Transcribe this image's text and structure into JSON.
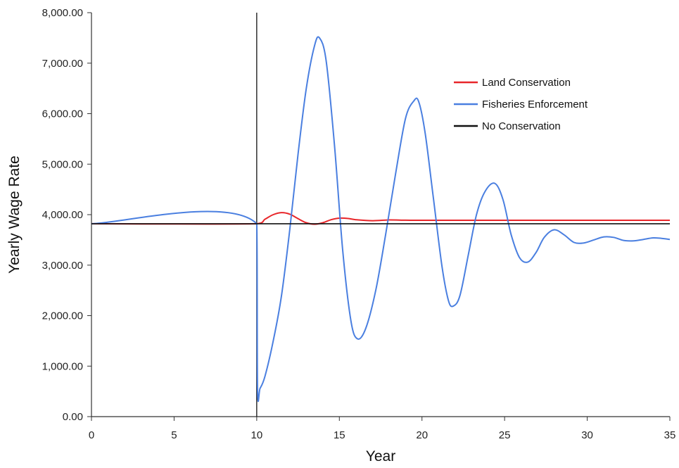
{
  "chart_data": {
    "type": "line",
    "title": "",
    "xlabel": "Year",
    "ylabel": "Yearly Wage Rate",
    "xlim": [
      0,
      35
    ],
    "ylim": [
      0,
      8000
    ],
    "x_ticks": [
      0,
      5,
      10,
      15,
      20,
      25,
      30,
      35
    ],
    "y_ticks": [
      0,
      1000,
      2000,
      3000,
      4000,
      5000,
      6000,
      7000,
      8000
    ],
    "x_tick_labels": [
      "0",
      "5",
      "10",
      "15",
      "20",
      "25",
      "30",
      "35"
    ],
    "y_tick_labels": [
      "0.00",
      "1,000.00",
      "2,000.00",
      "3,000.00",
      "4,000.00",
      "5,000.00",
      "6,000.00",
      "7,000.00",
      "8,000.00"
    ],
    "grid": false,
    "legend_position": "top-right",
    "vertical_marker_x": 10,
    "series": [
      {
        "name": "Land Conservation",
        "color": "#e8262a",
        "x": [
          0,
          10,
          10.5,
          11,
          11.5,
          12,
          12.5,
          13,
          13.5,
          14,
          14.5,
          15,
          15.5,
          16,
          17,
          18,
          19,
          20,
          22,
          25,
          30,
          35
        ],
        "y": [
          3820,
          3820,
          3910,
          4000,
          4040,
          4010,
          3920,
          3840,
          3810,
          3840,
          3900,
          3930,
          3925,
          3900,
          3880,
          3895,
          3890,
          3888,
          3888,
          3888,
          3888,
          3888
        ]
      },
      {
        "name": "Fisheries Enforcement",
        "color": "#4a7fe0",
        "x": [
          0,
          10,
          10.05,
          10.2,
          10.5,
          11,
          11.5,
          12,
          12.5,
          13,
          13.5,
          13.8,
          14.2,
          14.7,
          15.2,
          15.7,
          16.1,
          16.6,
          17.2,
          17.8,
          18.4,
          19,
          19.5,
          19.8,
          20.2,
          20.7,
          21.2,
          21.6,
          21.9,
          22.3,
          22.8,
          23.3,
          23.8,
          24.4,
          24.9,
          25.4,
          25.9,
          26.4,
          26.9,
          27.4,
          28,
          28.6,
          29.2,
          29.8,
          30.4,
          31,
          31.6,
          32.2,
          32.8,
          33.4,
          34,
          34.5,
          35
        ],
        "y": [
          3820,
          3820,
          550,
          560,
          800,
          1500,
          2400,
          3700,
          5200,
          6500,
          7350,
          7500,
          7050,
          5400,
          3300,
          1900,
          1540,
          1750,
          2500,
          3600,
          4800,
          5900,
          6250,
          6240,
          5600,
          4300,
          3000,
          2300,
          2190,
          2400,
          3200,
          4000,
          4450,
          4620,
          4300,
          3600,
          3150,
          3060,
          3250,
          3550,
          3700,
          3600,
          3450,
          3440,
          3500,
          3560,
          3550,
          3490,
          3480,
          3510,
          3540,
          3530,
          3510
        ]
      },
      {
        "name": "No Conservation",
        "color": "#111111",
        "x": [
          0,
          35
        ],
        "y": [
          3820,
          3820
        ]
      }
    ]
  }
}
